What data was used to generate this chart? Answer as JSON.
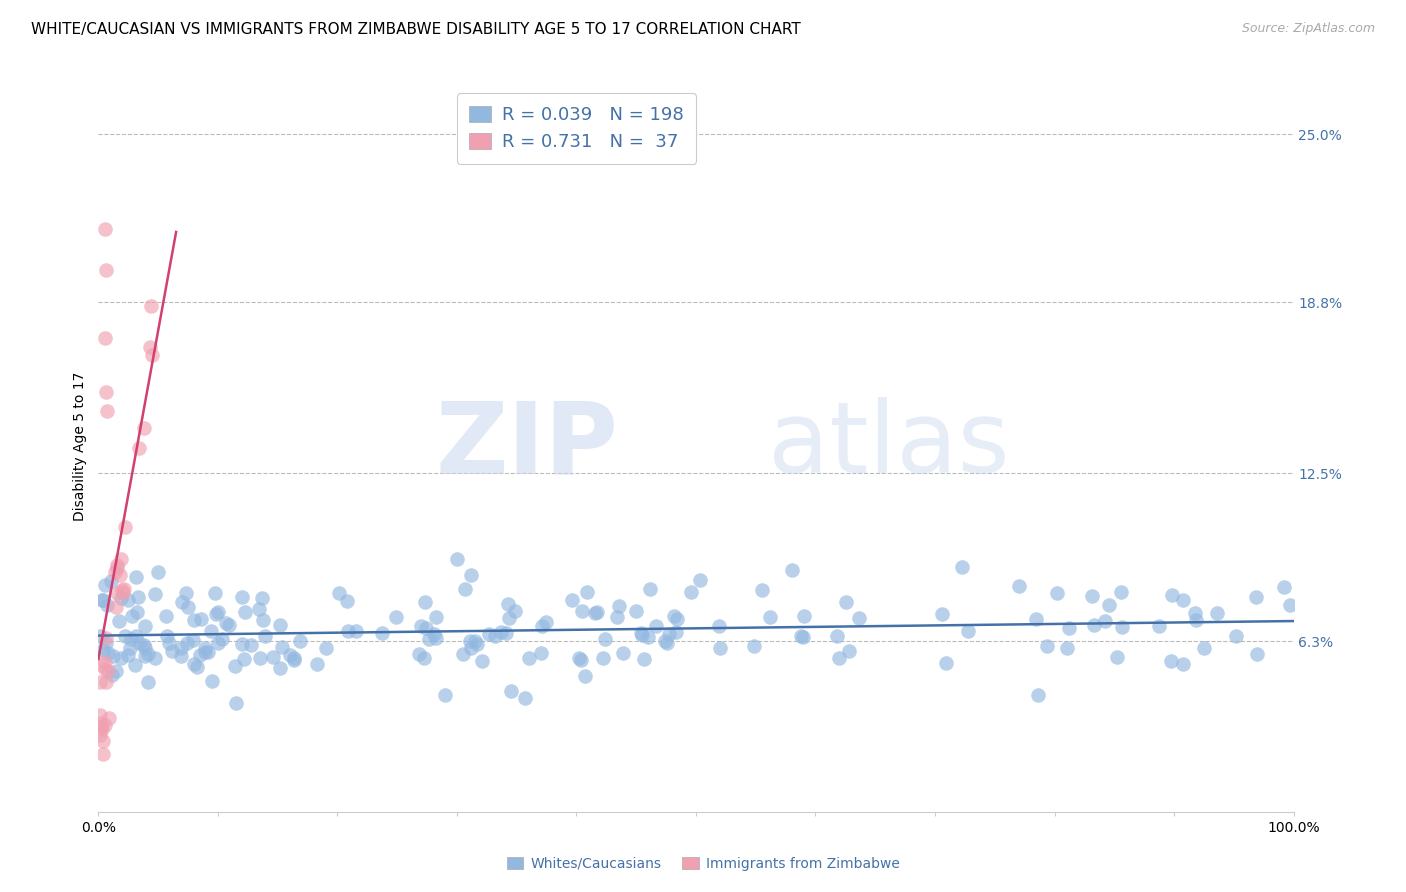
{
  "title": "WHITE/CAUCASIAN VS IMMIGRANTS FROM ZIMBABWE DISABILITY AGE 5 TO 17 CORRELATION CHART",
  "source": "Source: ZipAtlas.com",
  "ylabel": "Disability Age 5 to 17",
  "xlim": [
    0.0,
    1.0
  ],
  "ylim": [
    0.0,
    0.27
  ],
  "yticks": [
    0.063,
    0.125,
    0.188,
    0.25
  ],
  "yticklabels": [
    "6.3%",
    "12.5%",
    "18.8%",
    "25.0%"
  ],
  "xticks": [
    0.0,
    0.1,
    0.2,
    0.3,
    0.4,
    0.5,
    0.6,
    0.7,
    0.8,
    0.9,
    1.0
  ],
  "xticklabels": [
    "0.0%",
    "",
    "",
    "",
    "",
    "",
    "",
    "",
    "",
    "",
    "100.0%"
  ],
  "blue_color": "#92b8e0",
  "pink_color": "#f0a0b0",
  "blue_line_color": "#4472a8",
  "pink_line_color": "#d04070",
  "legend_blue_R": "0.039",
  "legend_blue_N": "198",
  "legend_pink_R": "0.731",
  "legend_pink_N": "37",
  "watermark_zip": "ZIP",
  "watermark_atlas": "atlas",
  "title_fontsize": 11,
  "axis_label_fontsize": 10,
  "tick_fontsize": 10,
  "legend_fontsize": 13
}
